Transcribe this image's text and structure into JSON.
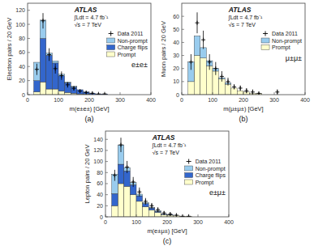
{
  "chart_data": [
    {
      "type": "histogram",
      "stacked": true,
      "title": "e±e±",
      "x_label": "m(e±e±) [GeV]",
      "y_label": "Electron pairs / 20 GeV",
      "bins": [
        0,
        20,
        40,
        60,
        80,
        100,
        120,
        140,
        160,
        180,
        200,
        220,
        240,
        260,
        280,
        300,
        320,
        340,
        360,
        380,
        400
      ],
      "xlim": [
        0,
        400
      ],
      "xticks": [
        0,
        100,
        200,
        300,
        400
      ],
      "ylim": [
        0,
        130
      ],
      "yticks": [
        0,
        20,
        40,
        60,
        80,
        100,
        120
      ],
      "grid": false,
      "legend": "top-right",
      "annotations": [
        "ATLAS",
        "∫Ldt = 4.7 fb⁻¹",
        "√s = 7 TeV",
        "(a)"
      ],
      "series": [
        {
          "name": "Prompt",
          "color": "#ffffcc",
          "values": [
            0,
            4,
            18,
            8,
            8,
            5,
            3,
            2,
            1,
            1,
            0,
            0,
            0,
            0,
            0,
            0,
            0,
            0,
            0,
            0
          ]
        },
        {
          "name": "Charge flips",
          "color": "#3366cc",
          "values": [
            0,
            16,
            62,
            48,
            37,
            22,
            14,
            9,
            6,
            3,
            2,
            1,
            1,
            0,
            0,
            0,
            0,
            0,
            0,
            0
          ]
        },
        {
          "name": "Non-prompt",
          "color": "#99ccee",
          "values": [
            0,
            26,
            26,
            3,
            3,
            2,
            1,
            1,
            0,
            0,
            0,
            0,
            0,
            0,
            0,
            0,
            0,
            0,
            0,
            0
          ]
        },
        {
          "name": "Data 2011",
          "type": "scatter",
          "marker": "plus",
          "color": "#000000",
          "values": [
            0,
            36,
            105,
            57,
            37,
            27,
            14,
            9,
            5,
            3,
            2,
            1,
            1,
            0,
            0,
            0,
            0,
            0,
            0,
            0
          ],
          "errors": [
            0,
            8,
            11,
            9,
            7,
            6,
            4,
            3,
            2,
            2,
            2,
            1,
            1,
            0,
            0,
            0,
            0,
            0,
            0,
            0
          ]
        }
      ]
    },
    {
      "type": "histogram",
      "stacked": true,
      "title": "μ±μ±",
      "x_label": "m(μ±μ±) [GeV]",
      "y_label": "Muon pairs / 20 GeV",
      "bins": [
        0,
        20,
        40,
        60,
        80,
        100,
        120,
        140,
        160,
        180,
        200,
        220,
        240,
        260,
        280,
        300,
        320,
        340,
        360,
        380,
        400
      ],
      "xlim": [
        0,
        400
      ],
      "xticks": [
        0,
        100,
        200,
        300,
        400
      ],
      "ylim": [
        0,
        70
      ],
      "yticks": [
        0,
        10,
        20,
        30,
        40,
        50,
        60
      ],
      "grid": false,
      "legend": "top-right",
      "annotations": [
        "ATLAS",
        "∫Ldt = 4.7 fb⁻¹",
        "√s = 7 TeV",
        "(b)"
      ],
      "series": [
        {
          "name": "Prompt",
          "color": "#ffffcc",
          "values": [
            0,
            10,
            30,
            28,
            22,
            18,
            12,
            8,
            5,
            3,
            2,
            1,
            1,
            0,
            0,
            0,
            0,
            0,
            0,
            0
          ]
        },
        {
          "name": "Non-prompt",
          "color": "#99ccee",
          "values": [
            0,
            15,
            15,
            8,
            4,
            2,
            1,
            1,
            0,
            0,
            0,
            0,
            0,
            0,
            0,
            0,
            0,
            0,
            0,
            0
          ]
        },
        {
          "name": "Data 2011",
          "type": "scatter",
          "marker": "plus",
          "color": "#000000",
          "values": [
            0,
            25,
            55,
            42,
            25,
            20,
            14,
            10,
            6,
            5,
            3,
            2,
            1,
            0,
            0,
            2,
            0,
            0,
            0,
            0
          ],
          "errors": [
            0,
            6,
            8,
            7,
            6,
            5,
            4,
            3,
            2,
            2,
            2,
            2,
            1,
            0,
            0,
            2,
            0,
            0,
            0,
            0
          ]
        }
      ]
    },
    {
      "type": "histogram",
      "stacked": true,
      "title": "e±μ±",
      "x_label": "m(e±μ±) [GeV]",
      "y_label": "Lepton pairs / 20 GeV",
      "bins": [
        0,
        20,
        40,
        60,
        80,
        100,
        120,
        140,
        160,
        180,
        200,
        220,
        240,
        260,
        280,
        300,
        320,
        340,
        360,
        380,
        400
      ],
      "xlim": [
        0,
        400
      ],
      "xticks": [
        0,
        100,
        200,
        300,
        400
      ],
      "ylim": [
        0,
        155
      ],
      "yticks": [
        0,
        20,
        40,
        60,
        80,
        100,
        120,
        140
      ],
      "grid": false,
      "legend": "top-right",
      "annotations": [
        "ATLAS",
        "∫Ldt = 4.7 fb⁻¹",
        "√s = 7 TeV",
        "(c)"
      ],
      "series": [
        {
          "name": "Prompt",
          "color": "#ffffcc",
          "values": [
            0,
            20,
            60,
            55,
            40,
            28,
            18,
            12,
            8,
            4,
            3,
            2,
            1,
            1,
            0,
            0,
            0,
            0,
            0,
            0
          ]
        },
        {
          "name": "Charge flips",
          "color": "#3366cc",
          "values": [
            0,
            22,
            35,
            28,
            18,
            10,
            6,
            4,
            2,
            1,
            1,
            0,
            0,
            0,
            0,
            0,
            0,
            0,
            0,
            0
          ]
        },
        {
          "name": "Non-prompt",
          "color": "#99ccee",
          "values": [
            0,
            35,
            35,
            6,
            4,
            3,
            2,
            1,
            1,
            0,
            0,
            0,
            0,
            0,
            0,
            0,
            0,
            0,
            0,
            0
          ]
        },
        {
          "name": "Data 2011",
          "type": "scatter",
          "marker": "plus",
          "color": "#000000",
          "values": [
            0,
            75,
            130,
            90,
            63,
            45,
            28,
            20,
            13,
            7,
            5,
            3,
            1,
            1,
            0,
            0,
            0,
            0,
            0,
            0
          ],
          "errors": [
            0,
            10,
            13,
            11,
            9,
            8,
            6,
            5,
            4,
            3,
            3,
            2,
            1,
            1,
            0,
            0,
            0,
            0,
            0,
            0
          ]
        }
      ]
    }
  ]
}
